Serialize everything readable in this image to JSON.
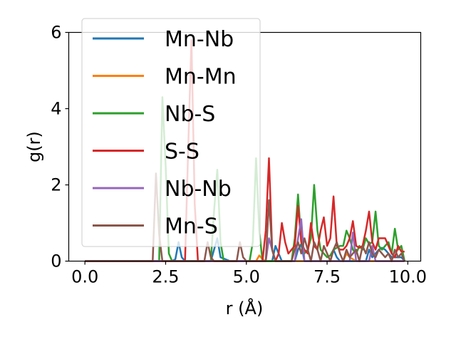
{
  "chart_data": {
    "type": "line",
    "title": "",
    "xlabel": "r (Å)",
    "ylabel": "g(r)",
    "xlim": [
      -0.5,
      10.4
    ],
    "ylim": [
      0,
      6
    ],
    "xticks": [
      0.0,
      2.5,
      5.0,
      7.5,
      10.0
    ],
    "xtick_labels": [
      "0.0",
      "2.5",
      "5.0",
      "7.5",
      "10.0"
    ],
    "yticks": [
      0,
      2,
      4,
      6
    ],
    "ytick_labels": [
      "0",
      "2",
      "4",
      "6"
    ],
    "grid": false,
    "legend_position": "top-left",
    "series": [
      {
        "name": "Mn-Nb",
        "color": "#1f77b4",
        "x": [
          0,
          2.7,
          2.8,
          2.9,
          3.0,
          3.1,
          3.5,
          3.9,
          4.0,
          4.1,
          4.2,
          4.5,
          5.8,
          5.9,
          6.0,
          6.1,
          6.5,
          6.6,
          6.7,
          6.8,
          7.6,
          7.7,
          7.8,
          7.9,
          8.7,
          8.8,
          8.9,
          9.0,
          9.1,
          9.2,
          9.3,
          9.4,
          9.5,
          9.8,
          9.9
        ],
        "y": [
          0,
          0,
          0.05,
          0.5,
          0.1,
          0,
          0,
          0,
          0.3,
          0.6,
          0.1,
          0,
          0,
          0.4,
          0.2,
          0,
          0,
          0.3,
          0.45,
          0,
          0,
          0.3,
          0.1,
          0,
          0,
          0.3,
          0.1,
          0.2,
          0.3,
          0.35,
          0.3,
          0.2,
          0.1,
          0.1,
          0
        ]
      },
      {
        "name": "Mn-Mn",
        "color": "#ff7f0e",
        "x": [
          0,
          5.3,
          5.4,
          5.5,
          5.6,
          8.0,
          8.1,
          8.2,
          8.3,
          8.4,
          9.9
        ],
        "y": [
          0,
          0,
          0.15,
          0.05,
          0,
          0,
          0.2,
          0.1,
          0.05,
          0,
          0
        ]
      },
      {
        "name": "Nb-S",
        "color": "#2ca02c",
        "x": [
          0,
          2.3,
          2.4,
          2.5,
          2.6,
          2.7,
          3.9,
          4.0,
          4.1,
          4.2,
          4.3,
          5.1,
          5.2,
          5.3,
          5.4,
          5.5,
          6.4,
          6.5,
          6.6,
          6.7,
          6.8,
          6.9,
          7.0,
          7.1,
          7.2,
          7.3,
          7.4,
          7.5,
          7.6,
          7.7,
          7.8,
          7.9,
          8.0,
          8.1,
          8.2,
          8.3,
          8.4,
          8.5,
          8.6,
          8.7,
          8.8,
          8.9,
          9.0,
          9.1,
          9.2,
          9.3,
          9.4,
          9.5,
          9.6,
          9.7,
          9.8,
          9.9
        ],
        "y": [
          0,
          0,
          4.3,
          2.5,
          0.2,
          0,
          0,
          1.3,
          2.4,
          0.5,
          0,
          0,
          0.5,
          2.7,
          0.8,
          0,
          0,
          0.6,
          1.75,
          0.5,
          0.2,
          0.3,
          0.6,
          2.0,
          0.8,
          0.3,
          0.2,
          0.1,
          0.15,
          0.3,
          0.35,
          0.4,
          0.4,
          0.8,
          0.6,
          0.3,
          0.2,
          0.4,
          0.3,
          0.6,
          0.45,
          0.5,
          1.3,
          0.4,
          0.3,
          0.4,
          0.5,
          0.2,
          0.85,
          0.3,
          0.4,
          0
        ]
      },
      {
        "name": "S-S",
        "color": "#d62728",
        "x": [
          0,
          3.1,
          3.2,
          3.3,
          3.4,
          3.5,
          5.5,
          5.6,
          5.7,
          5.8,
          5.9,
          6.0,
          6.1,
          6.2,
          6.3,
          6.4,
          6.5,
          6.6,
          6.7,
          6.8,
          6.9,
          7.0,
          7.1,
          7.2,
          7.3,
          7.4,
          7.5,
          7.6,
          7.7,
          7.8,
          7.9,
          8.0,
          8.1,
          8.2,
          8.3,
          8.4,
          8.5,
          8.6,
          8.7,
          8.8,
          8.9,
          9.0,
          9.1,
          9.2,
          9.3,
          9.4,
          9.5,
          9.6,
          9.7,
          9.8,
          9.9
        ],
        "y": [
          0,
          0,
          3.0,
          5.8,
          1.5,
          0,
          0,
          0.8,
          2.7,
          0.3,
          0,
          0.2,
          1.0,
          0.5,
          0.2,
          0.3,
          0.4,
          1.45,
          0.5,
          0.3,
          0.2,
          1.0,
          0.4,
          0.3,
          0.8,
          1.15,
          0.4,
          0.6,
          1.7,
          0.4,
          0.3,
          0.3,
          0.4,
          0.6,
          1.05,
          0.4,
          0.35,
          0.4,
          0.8,
          1.3,
          0.5,
          0.3,
          0.6,
          0.6,
          0.6,
          0.4,
          0.2,
          0.1,
          0.4,
          0.25,
          0.25
        ]
      },
      {
        "name": "Nb-Nb",
        "color": "#9467bd",
        "x": [
          0,
          5.6,
          5.7,
          5.8,
          5.9,
          6.5,
          6.6,
          6.7,
          6.8,
          8.2,
          8.3,
          8.4,
          8.8,
          8.9,
          9.0,
          9.9
        ],
        "y": [
          0,
          0,
          0.6,
          0.3,
          0,
          0,
          0.6,
          1.1,
          0,
          0,
          0.75,
          0,
          0,
          0.4,
          0,
          0
        ]
      },
      {
        "name": "Mn-S",
        "color": "#8c564b",
        "x": [
          0,
          2.1,
          2.2,
          2.3,
          2.4,
          3.7,
          3.8,
          3.9,
          4.0,
          4.7,
          4.8,
          4.9,
          5.0,
          5.6,
          5.7,
          5.8,
          5.9,
          6.4,
          6.5,
          6.6,
          6.7,
          6.8,
          6.9,
          7.0,
          7.1,
          7.2,
          7.3,
          7.4,
          7.5,
          7.6,
          7.7,
          7.8,
          7.9,
          8.0,
          8.1,
          8.2,
          8.3,
          8.4,
          8.5,
          8.6,
          8.7,
          8.8,
          8.9,
          9.0,
          9.1,
          9.2,
          9.3,
          9.4,
          9.5,
          9.6,
          9.7,
          9.8,
          9.9
        ],
        "y": [
          0,
          0,
          2.3,
          0.7,
          0,
          0,
          0.5,
          0.1,
          0,
          0,
          0.5,
          0.1,
          0,
          0,
          1.6,
          0.3,
          0,
          0,
          0.3,
          0.5,
          0.2,
          0.6,
          0.3,
          0,
          0.5,
          0.3,
          0,
          0.4,
          0.2,
          0,
          0.3,
          0.5,
          0.2,
          0,
          0.3,
          0.1,
          0.2,
          0.3,
          0,
          0.4,
          0.2,
          0.5,
          0.2,
          0.1,
          0.3,
          0.2,
          0.1,
          0.2,
          0,
          0.3,
          0.1,
          0.2,
          0
        ]
      }
    ]
  }
}
